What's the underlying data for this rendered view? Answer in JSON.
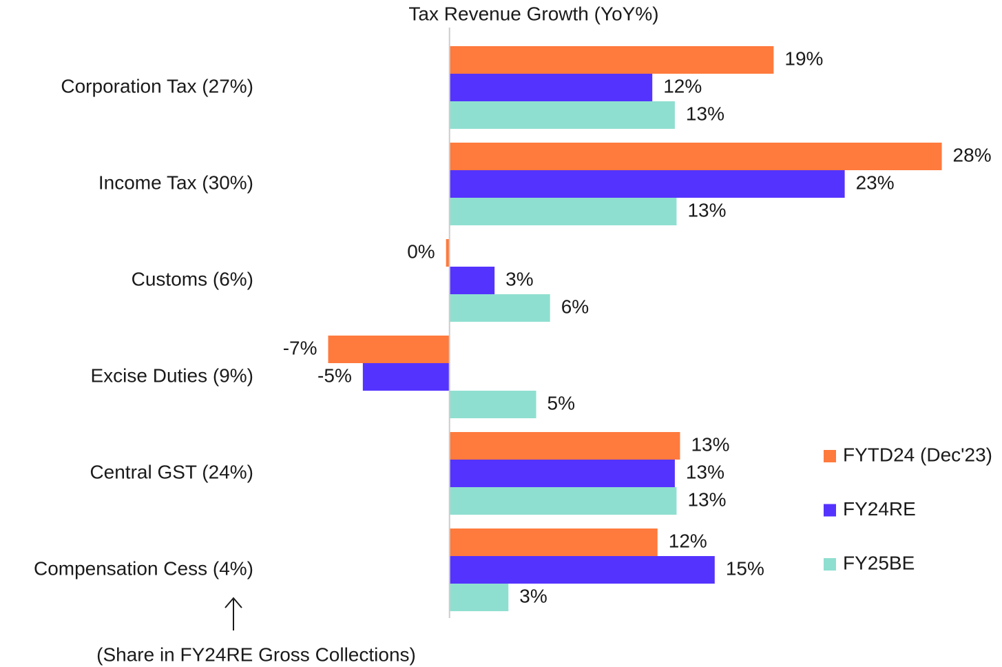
{
  "chart_data": {
    "type": "hbar",
    "title": "Tax Revenue Growth (YoY%)",
    "annotation": "(Share in FY24RE Gross Collections)",
    "categories": [
      "Corporation Tax (27%)",
      "Income Tax (30%)",
      "Customs (6%)",
      "Excise Duties (9%)",
      "Central GST (24%)",
      "Compensation Cess (4%)"
    ],
    "series": [
      {
        "name": "FYTD24 (Dec'23)",
        "color": "#ff7a3d",
        "values": [
          18.7,
          28.4,
          -0.2,
          -7.0,
          13.3,
          12.0
        ],
        "value_labels": [
          "19%",
          "28%",
          "0%",
          "-7%",
          "13%",
          "12%"
        ]
      },
      {
        "name": "FY24RE",
        "color": "#5533ff",
        "values": [
          11.7,
          22.8,
          2.6,
          -5.0,
          13.0,
          15.3
        ],
        "value_labels": [
          "12%",
          "23%",
          "3%",
          "-5%",
          "13%",
          "15%"
        ]
      },
      {
        "name": "FY25BE",
        "color": "#8fdfd0",
        "values": [
          13.0,
          13.1,
          5.8,
          5.0,
          13.1,
          3.4
        ],
        "value_labels": [
          "13%",
          "13%",
          "6%",
          "5%",
          "13%",
          "3%"
        ]
      }
    ],
    "xlim": [
      -10,
      31
    ],
    "grid": false,
    "legend": "right"
  }
}
